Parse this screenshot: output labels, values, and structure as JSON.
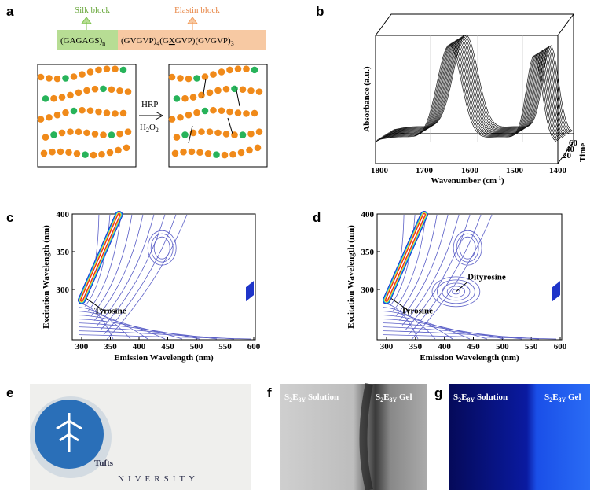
{
  "panels": {
    "a": "a",
    "b": "b",
    "c": "c",
    "d": "d",
    "e": "e",
    "f": "f",
    "g": "g"
  },
  "panel_a": {
    "silk_block": "Silk block",
    "elastin_block": "Elastin block",
    "silk_sequence": [
      "(GAGAGS)",
      "n"
    ],
    "elastin_sequence": [
      "(GVGVP)",
      "4",
      "(G",
      "X",
      "GVP)(GVGVP)",
      "3"
    ],
    "enzyme": "HRP",
    "oxidant": [
      "H",
      "2",
      "O",
      "2"
    ]
  },
  "panel_b": {
    "y_label": "Absorbance (a.u.)",
    "x_label": [
      "Wavenumber (cm",
      "-1",
      ")"
    ],
    "x_ticks": [
      1800,
      1700,
      1600,
      1500,
      1400
    ],
    "time_label": "Time",
    "time_ticks": [
      20,
      40,
      60
    ]
  },
  "panel_c": {
    "y_label": "Excitation Wavelength (nm)",
    "x_label": "Emission Wavelength (nm)",
    "x_ticks": [
      300,
      350,
      400,
      450,
      500,
      550,
      600
    ],
    "y_ticks": [
      400,
      350,
      300
    ],
    "annotation": "Tyrosine"
  },
  "panel_d": {
    "y_label": "Excitation Wavelength (nm)",
    "x_label": "Emission Wavelength (nm)",
    "x_ticks": [
      300,
      350,
      400,
      450,
      500,
      550,
      600
    ],
    "y_ticks": [
      400,
      350,
      300
    ],
    "annotations": [
      "Dityrosine",
      "Tyrosine"
    ]
  },
  "panel_e": {
    "logo_main": "Tufts",
    "logo_sub": "NIVERSITY"
  },
  "panel_f": {
    "left_label": [
      "S",
      "2",
      "E",
      "8Y",
      " Solution"
    ],
    "right_label": [
      "S",
      "2",
      "E",
      "8Y",
      " Gel"
    ]
  },
  "panel_g": {
    "left_label": [
      "S",
      "2",
      "E",
      "8Y",
      " Solution"
    ],
    "right_label": [
      "S",
      "2",
      "E",
      "8Y",
      " Gel"
    ]
  }
}
